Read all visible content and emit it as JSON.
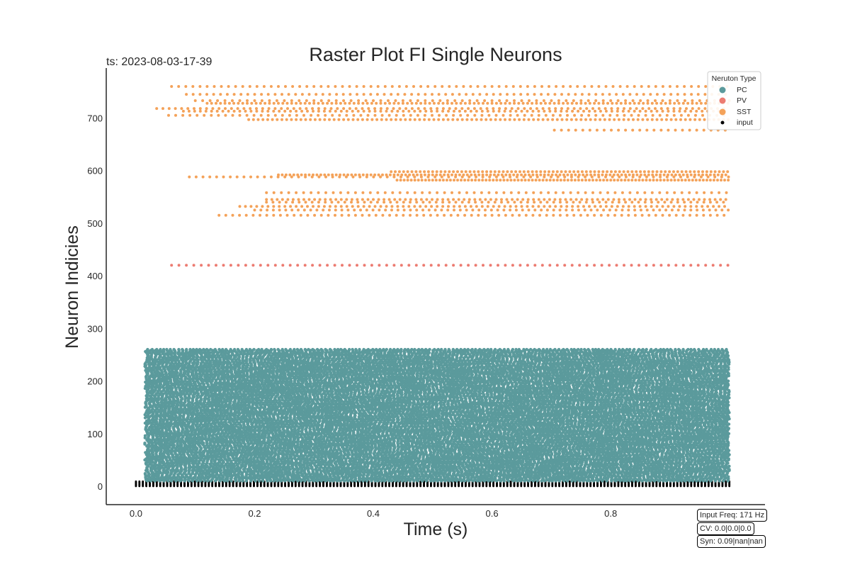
{
  "title": "Raster Plot FI Single Neurons",
  "timestamp": "ts: 2023-08-03-17-39",
  "info": {
    "input_freq": "Input Freq: 171 Hz",
    "cv": "CV: 0.0|0.0|0.0",
    "syn": "Syn: 0.09|nan|nan"
  },
  "colors": {
    "PC": "#5b9a9c",
    "PV": "#ec7c72",
    "SST": "#f4a259",
    "input": "#000000"
  },
  "chart_data": {
    "type": "scatter",
    "title": "Raster Plot FI Single Neurons",
    "xlabel": "Time (s)",
    "ylabel": "Neuron Indicies",
    "xlim": [
      -0.05,
      1.06
    ],
    "ylim": [
      -35,
      795
    ],
    "xticks": [
      "0.0",
      "0.2",
      "0.4",
      "0.6",
      "0.8"
    ],
    "xtick_values": [
      0.0,
      0.2,
      0.4,
      0.6,
      0.8
    ],
    "yticks": [
      "0",
      "100",
      "200",
      "300",
      "400",
      "500",
      "600",
      "700"
    ],
    "ytick_values": [
      0,
      100,
      200,
      300,
      400,
      500,
      600,
      700
    ],
    "grid": false,
    "legend": {
      "title": "Neruton Type",
      "position": "top-right",
      "entries": [
        "PC",
        "PV",
        "SST",
        "input"
      ]
    },
    "series": [
      {
        "name": "input",
        "neuron_range": [
          0,
          9
        ],
        "t_start": 0.0,
        "t_end": 1.0,
        "rate_hz": 171
      },
      {
        "name": "PC",
        "neuron_range": [
          10,
          260
        ],
        "t_start": 0.015,
        "t_end": 1.0,
        "approx_isi_s": 0.0065
      },
      {
        "name": "PV",
        "neurons": [
          {
            "id": 420,
            "t_start": 0.06,
            "isi": 0.0125
          }
        ]
      },
      {
        "name": "SST",
        "neurons": [
          {
            "id": 515,
            "t_start": 0.14,
            "isi": 0.0115
          },
          {
            "id": 525,
            "t_start": 0.2,
            "isi": 0.0105
          },
          {
            "id": 532,
            "t_start": 0.175,
            "isi": 0.0095
          },
          {
            "id": 540,
            "t_start": 0.22,
            "isi": 0.011
          },
          {
            "id": 545,
            "t_start": 0.22,
            "isi": 0.009
          },
          {
            "id": 558,
            "t_start": 0.22,
            "isi": 0.0125
          },
          {
            "id": 582,
            "t_start": 0.44,
            "isi": 0.006
          },
          {
            "id": 588,
            "t_start": 0.09,
            "isi": 0.0115
          },
          {
            "id": 592,
            "t_start": 0.24,
            "isi": 0.0065
          },
          {
            "id": 598,
            "t_start": 0.43,
            "isi": 0.007
          },
          {
            "id": 677,
            "t_start": 0.705,
            "isi": 0.012
          },
          {
            "id": 697,
            "t_start": 0.19,
            "isi": 0.008
          },
          {
            "id": 705,
            "t_start": 0.055,
            "isi": 0.012
          },
          {
            "id": 713,
            "t_start": 0.08,
            "isi": 0.0095
          },
          {
            "id": 718,
            "t_start": 0.035,
            "isi": 0.0105
          },
          {
            "id": 728,
            "t_start": 0.12,
            "isi": 0.0075
          },
          {
            "id": 733,
            "t_start": 0.1,
            "isi": 0.0125
          },
          {
            "id": 745,
            "t_start": 0.085,
            "isi": 0.0115
          },
          {
            "id": 760,
            "t_start": 0.06,
            "isi": 0.012
          }
        ]
      }
    ]
  }
}
